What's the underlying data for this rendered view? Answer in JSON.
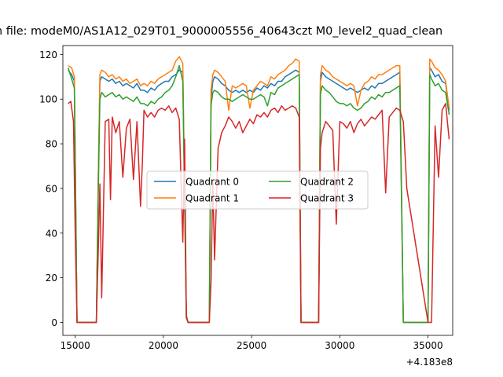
{
  "chart_data": {
    "type": "line",
    "title": "n file: modeM0/AS1A12_029T01_9000005556_40643czt M0_level2_quad_clean",
    "xlabel": "",
    "ylabel": "",
    "x_offset_label": "+4.183e8",
    "xlim": [
      14300,
      36400
    ],
    "ylim": [
      -5.8,
      124
    ],
    "xticks": [
      15000,
      20000,
      25000,
      30000,
      35000
    ],
    "xtick_labels": [
      "15000",
      "20000",
      "25000",
      "30000",
      "35000"
    ],
    "yticks": [
      0,
      20,
      40,
      60,
      80,
      100,
      120
    ],
    "ytick_labels": [
      "0",
      "20",
      "40",
      "60",
      "80",
      "100",
      "120"
    ],
    "grid": false,
    "legend_placement": "center",
    "series": [
      {
        "name": "Quadrant 0",
        "color": "#1f77b4",
        "x": [
          14600,
          14800,
          14950,
          15100,
          15300,
          16200,
          16300,
          16400,
          16500,
          16700,
          16900,
          17100,
          17300,
          17500,
          17700,
          17900,
          18100,
          18300,
          18500,
          18700,
          18900,
          19100,
          19300,
          19500,
          19700,
          19900,
          20100,
          20300,
          20500,
          20700,
          20900,
          21100,
          21300,
          21400,
          22600,
          22700,
          22800,
          22900,
          23100,
          23300,
          23500,
          23700,
          23900,
          24100,
          24300,
          24500,
          24700,
          24900,
          25100,
          25300,
          25500,
          25700,
          25900,
          26100,
          26300,
          26500,
          26700,
          26900,
          27100,
          27300,
          27500,
          27700,
          27800,
          28800,
          28900,
          29000,
          29200,
          29400,
          29600,
          29800,
          30000,
          30200,
          30400,
          30600,
          30800,
          31000,
          31200,
          31400,
          31600,
          31800,
          32000,
          32200,
          32400,
          32600,
          32800,
          33000,
          33200,
          33400,
          33600,
          33800,
          35000,
          35100,
          35200,
          35400,
          35600,
          35800,
          36000,
          36200
        ],
        "y": [
          113,
          111,
          108,
          0,
          0,
          0,
          60,
          108,
          110,
          109,
          108,
          109,
          107,
          108,
          106,
          107,
          106,
          105,
          107,
          104,
          104,
          103,
          105,
          104,
          106,
          107,
          108,
          108,
          110,
          111,
          113,
          112,
          2,
          0,
          0,
          100,
          108,
          110,
          109,
          107,
          106,
          104,
          103,
          104,
          103,
          104,
          103,
          104,
          103,
          105,
          104,
          106,
          105,
          107,
          106,
          108,
          108,
          110,
          111,
          112,
          113,
          112,
          0,
          0,
          108,
          112,
          110,
          109,
          108,
          107,
          106,
          105,
          104,
          105,
          104,
          103,
          104,
          105,
          104,
          106,
          105,
          107,
          107,
          108,
          109,
          110,
          111,
          112,
          0,
          0,
          0,
          114,
          113,
          110,
          111,
          108,
          107,
          95
        ]
      },
      {
        "name": "Quadrant 1",
        "color": "#ff7f0e",
        "x": [
          14600,
          14800,
          14950,
          15100,
          15300,
          16200,
          16300,
          16400,
          16500,
          16700,
          16900,
          17100,
          17300,
          17500,
          17700,
          17900,
          18100,
          18300,
          18500,
          18700,
          18900,
          19100,
          19300,
          19500,
          19700,
          19900,
          20100,
          20300,
          20500,
          20700,
          20900,
          21100,
          21300,
          21400,
          22600,
          22700,
          22800,
          22900,
          23100,
          23300,
          23500,
          23700,
          23900,
          24100,
          24300,
          24500,
          24700,
          24900,
          25100,
          25300,
          25500,
          25700,
          25900,
          26100,
          26300,
          26500,
          26700,
          26900,
          27100,
          27300,
          27500,
          27700,
          27800,
          28800,
          28900,
          29000,
          29200,
          29400,
          29600,
          29800,
          30000,
          30200,
          30400,
          30600,
          30800,
          31000,
          31200,
          31400,
          31600,
          31800,
          32000,
          32200,
          32400,
          32600,
          32800,
          33000,
          33200,
          33400,
          33600,
          33800,
          35000,
          35100,
          35200,
          35400,
          35600,
          35800,
          36000,
          36200
        ],
        "y": [
          115,
          114,
          110,
          0,
          0,
          0,
          62,
          111,
          113,
          112,
          110,
          111,
          109,
          110,
          108,
          109,
          107,
          108,
          109,
          106,
          107,
          106,
          108,
          107,
          109,
          110,
          111,
          112,
          113,
          117,
          119,
          116,
          3,
          0,
          0,
          104,
          111,
          113,
          112,
          110,
          108,
          95,
          106,
          105,
          106,
          107,
          106,
          96,
          104,
          106,
          108,
          107,
          106,
          110,
          109,
          111,
          112,
          113,
          115,
          116,
          118,
          117,
          0,
          0,
          111,
          115,
          113,
          112,
          110,
          109,
          108,
          107,
          106,
          107,
          106,
          97,
          104,
          107,
          108,
          110,
          109,
          111,
          111,
          112,
          113,
          114,
          115,
          115,
          0,
          0,
          0,
          118,
          117,
          114,
          113,
          111,
          108,
          96
        ]
      },
      {
        "name": "Quadrant 2",
        "color": "#2ca02c",
        "x": [
          14600,
          14800,
          14950,
          15100,
          15300,
          16200,
          16300,
          16400,
          16500,
          16700,
          16900,
          17100,
          17300,
          17500,
          17700,
          17900,
          18100,
          18300,
          18500,
          18700,
          18900,
          19100,
          19300,
          19500,
          19700,
          19900,
          20100,
          20300,
          20500,
          20700,
          20900,
          21100,
          21300,
          21400,
          22600,
          22700,
          22800,
          22900,
          23100,
          23300,
          23500,
          23700,
          23900,
          24100,
          24300,
          24500,
          24700,
          24900,
          25100,
          25300,
          25500,
          25700,
          25900,
          26100,
          26300,
          26500,
          26700,
          26900,
          27100,
          27300,
          27500,
          27700,
          27800,
          28800,
          28900,
          29000,
          29200,
          29400,
          29600,
          29800,
          30000,
          30200,
          30400,
          30600,
          30800,
          31000,
          31200,
          31400,
          31600,
          31800,
          32000,
          32200,
          32400,
          32600,
          32800,
          33000,
          33200,
          33400,
          33600,
          33800,
          35000,
          35100,
          35200,
          35400,
          35600,
          35800,
          36000,
          36200
        ],
        "y": [
          114,
          109,
          105,
          0,
          0,
          0,
          55,
          100,
          103,
          101,
          102,
          103,
          101,
          102,
          100,
          101,
          100,
          99,
          101,
          98,
          98,
          97,
          99,
          98,
          100,
          101,
          103,
          104,
          106,
          110,
          115,
          108,
          2,
          0,
          0,
          97,
          103,
          104,
          103,
          101,
          100,
          100,
          99,
          100,
          101,
          102,
          101,
          100,
          100,
          101,
          102,
          101,
          97,
          103,
          102,
          105,
          106,
          107,
          108,
          109,
          110,
          111,
          0,
          0,
          102,
          106,
          104,
          103,
          101,
          99,
          98,
          98,
          97,
          98,
          96,
          95,
          96,
          98,
          99,
          101,
          100,
          102,
          101,
          103,
          103,
          104,
          105,
          106,
          0,
          0,
          0,
          111,
          109,
          106,
          107,
          104,
          103,
          93
        ]
      },
      {
        "name": "Quadrant 3",
        "color": "#d62728",
        "x": [
          14600,
          14750,
          14900,
          15000,
          15100,
          15300,
          16200,
          16300,
          16400,
          16500,
          16700,
          16900,
          17000,
          17100,
          17300,
          17500,
          17700,
          17900,
          18100,
          18300,
          18500,
          18700,
          18800,
          18900,
          19100,
          19300,
          19500,
          19700,
          19900,
          20100,
          20300,
          20500,
          20700,
          20900,
          21100,
          21200,
          21300,
          21400,
          22600,
          22700,
          22800,
          22900,
          23100,
          23300,
          23500,
          23700,
          23900,
          24100,
          24300,
          24500,
          24700,
          24900,
          25100,
          25300,
          25500,
          25700,
          25900,
          26100,
          26300,
          26500,
          26700,
          26900,
          27100,
          27300,
          27500,
          27700,
          27800,
          28800,
          28900,
          29000,
          29200,
          29400,
          29600,
          29800,
          30000,
          30200,
          30400,
          30600,
          30800,
          31000,
          31200,
          31400,
          31600,
          31800,
          32000,
          32200,
          32400,
          32600,
          32800,
          33000,
          33200,
          33400,
          33600,
          33800,
          35000,
          35100,
          35200,
          35400,
          35600,
          35800,
          36000,
          36200
        ],
        "y": [
          98,
          99,
          90,
          40,
          0,
          0,
          0,
          30,
          62,
          11,
          90,
          91,
          55,
          92,
          85,
          90,
          65,
          87,
          91,
          64,
          90,
          52,
          70,
          95,
          92,
          94,
          92,
          95,
          96,
          95,
          97,
          94,
          96,
          91,
          36,
          82,
          3,
          0,
          0,
          18,
          63,
          28,
          78,
          85,
          88,
          92,
          90,
          87,
          90,
          85,
          88,
          91,
          89,
          93,
          92,
          94,
          92,
          95,
          96,
          94,
          97,
          95,
          96,
          97,
          96,
          92,
          0,
          0,
          78,
          85,
          90,
          88,
          86,
          44,
          90,
          89,
          87,
          90,
          85,
          89,
          91,
          88,
          90,
          92,
          91,
          93,
          95,
          58,
          92,
          94,
          96,
          95,
          90,
          60,
          0,
          0,
          0,
          88,
          65,
          95,
          98,
          82
        ]
      }
    ]
  }
}
